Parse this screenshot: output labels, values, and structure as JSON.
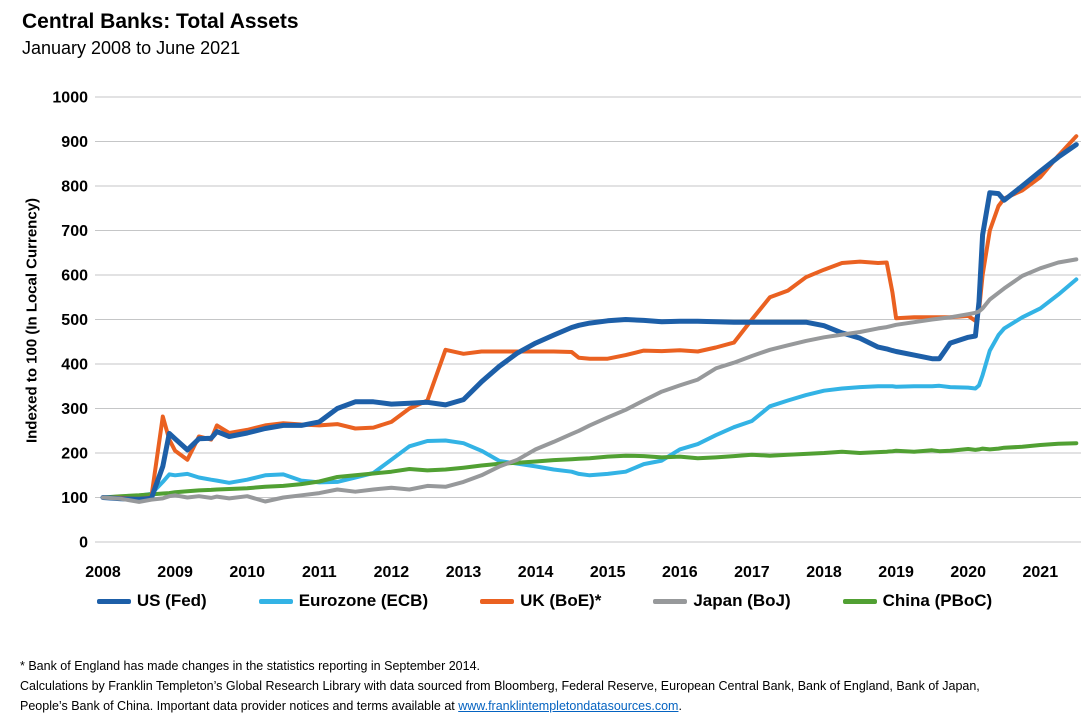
{
  "header": {
    "title": "Central Banks: Total Assets",
    "subtitle": "January 2008 to June 2021"
  },
  "chart_data": {
    "type": "line",
    "title": "Central Banks: Total Assets",
    "subtitle": "January 2008 to June 2021",
    "xlabel": "",
    "ylabel": "Indexed to 100 (In Local Currency)",
    "ylim": [
      0,
      1000
    ],
    "yticks": [
      0,
      100,
      200,
      300,
      400,
      500,
      600,
      700,
      800,
      900,
      1000
    ],
    "xlim": [
      2008,
      2021.58
    ],
    "categories": [
      "2008",
      "2009",
      "2010",
      "2011",
      "2012",
      "2013",
      "2014",
      "2015",
      "2016",
      "2017",
      "2018",
      "2019",
      "2020",
      "2021"
    ],
    "grid": "horizontal",
    "legend_position": "bottom",
    "x": [
      2008.0,
      2008.25,
      2008.5,
      2008.67,
      2008.83,
      2008.92,
      2009.0,
      2009.17,
      2009.33,
      2009.5,
      2009.58,
      2009.75,
      2010.0,
      2010.25,
      2010.5,
      2010.75,
      2011.0,
      2011.25,
      2011.5,
      2011.75,
      2012.0,
      2012.25,
      2012.5,
      2012.75,
      2013.0,
      2013.25,
      2013.5,
      2013.75,
      2014.0,
      2014.25,
      2014.5,
      2014.6,
      2014.75,
      2015.0,
      2015.25,
      2015.5,
      2015.75,
      2016.0,
      2016.25,
      2016.5,
      2016.75,
      2017.0,
      2017.25,
      2017.5,
      2017.75,
      2018.0,
      2018.25,
      2018.5,
      2018.75,
      2018.87,
      2018.95,
      2019.0,
      2019.25,
      2019.5,
      2019.6,
      2019.75,
      2020.0,
      2020.1,
      2020.15,
      2020.2,
      2020.3,
      2020.42,
      2020.5,
      2020.75,
      2021.0,
      2021.25,
      2021.5
    ],
    "series": [
      {
        "name": "US (Fed)",
        "color": "#1D5FA8",
        "width": 5,
        "values": [
          100,
          97,
          96,
          98,
          170,
          244,
          232,
          207,
          232,
          233,
          248,
          237,
          245,
          255,
          262,
          262,
          270,
          300,
          315,
          315,
          310,
          312,
          314,
          308,
          320,
          360,
          395,
          425,
          447,
          465,
          482,
          487,
          492,
          497,
          500,
          498,
          495,
          496,
          496,
          495,
          494,
          494,
          494,
          494,
          494,
          486,
          470,
          458,
          438,
          434,
          430,
          428,
          420,
          412,
          412,
          447,
          460,
          463,
          540,
          690,
          785,
          783,
          768,
          800,
          833,
          865,
          893
        ]
      },
      {
        "name": "Eurozone (ECB)",
        "color": "#33B3E5",
        "width": 4,
        "values": [
          100,
          102,
          104,
          108,
          135,
          152,
          150,
          153,
          145,
          140,
          138,
          133,
          140,
          150,
          152,
          138,
          134,
          135,
          145,
          155,
          185,
          215,
          227,
          228,
          222,
          205,
          182,
          176,
          170,
          163,
          158,
          153,
          150,
          153,
          158,
          175,
          183,
          208,
          220,
          240,
          258,
          272,
          305,
          318,
          330,
          340,
          345,
          348,
          350,
          350,
          350,
          349,
          350,
          350,
          351,
          348,
          347,
          345,
          352,
          375,
          430,
          465,
          480,
          505,
          525,
          556,
          590
        ]
      },
      {
        "name": "UK (BoE)*",
        "color": "#EA6121",
        "width": 4,
        "values": [
          100,
          99,
          97,
          100,
          282,
          230,
          205,
          185,
          237,
          230,
          262,
          245,
          252,
          262,
          267,
          264,
          262,
          265,
          255,
          257,
          270,
          300,
          318,
          432,
          423,
          428,
          428,
          428,
          428,
          428,
          427,
          414,
          412,
          412,
          420,
          430,
          429,
          431,
          428,
          437,
          448,
          500,
          550,
          565,
          595,
          612,
          627,
          630,
          627,
          628,
          560,
          503,
          505,
          505,
          505,
          505,
          508,
          497,
          520,
          600,
          700,
          755,
          772,
          790,
          820,
          868,
          912
        ]
      },
      {
        "name": "Japan (BoJ)",
        "color": "#97999B",
        "width": 4,
        "values": [
          100,
          97,
          90,
          95,
          98,
          103,
          105,
          100,
          103,
          99,
          102,
          98,
          103,
          91,
          100,
          105,
          110,
          118,
          113,
          118,
          122,
          118,
          126,
          124,
          135,
          150,
          170,
          185,
          208,
          225,
          243,
          250,
          262,
          280,
          297,
          318,
          338,
          352,
          365,
          390,
          403,
          418,
          432,
          442,
          452,
          460,
          466,
          472,
          480,
          483,
          486,
          488,
          494,
          500,
          502,
          505,
          512,
          515,
          518,
          525,
          545,
          560,
          570,
          598,
          615,
          628,
          635
        ]
      },
      {
        "name": "China (PBoC)",
        "color": "#51A033",
        "width": 4,
        "values": [
          100,
          103,
          105,
          107,
          109,
          110,
          112,
          114,
          116,
          117,
          118,
          119,
          121,
          124,
          126,
          130,
          136,
          146,
          150,
          154,
          158,
          164,
          161,
          163,
          167,
          172,
          176,
          178,
          181,
          184,
          186,
          187,
          188,
          192,
          194,
          193,
          190,
          192,
          188,
          190,
          193,
          196,
          194,
          196,
          198,
          200,
          203,
          200,
          202,
          203,
          204,
          205,
          203,
          206,
          204,
          205,
          209,
          207,
          208,
          210,
          208,
          210,
          212,
          214,
          218,
          221,
          222
        ]
      }
    ],
    "draw_order": [
      1,
      4,
      2,
      0,
      3
    ]
  },
  "footnotes": {
    "note": "* Bank of England has made changes in the statistics reporting in September 2014.",
    "source_line1": "Calculations by Franklin Templeton’s Global Research Library with data sourced from Bloomberg, Federal Reserve, European Central Bank, Bank of England, Bank of Japan,",
    "source_line2_prefix": "People’s Bank of China. Important data provider notices and terms available at ",
    "link_text": "www.franklintempletondatasources.com",
    "suffix": "."
  },
  "colors": {
    "link": "#0563C1",
    "grid": "#C5C6C7",
    "text": "#000000"
  }
}
